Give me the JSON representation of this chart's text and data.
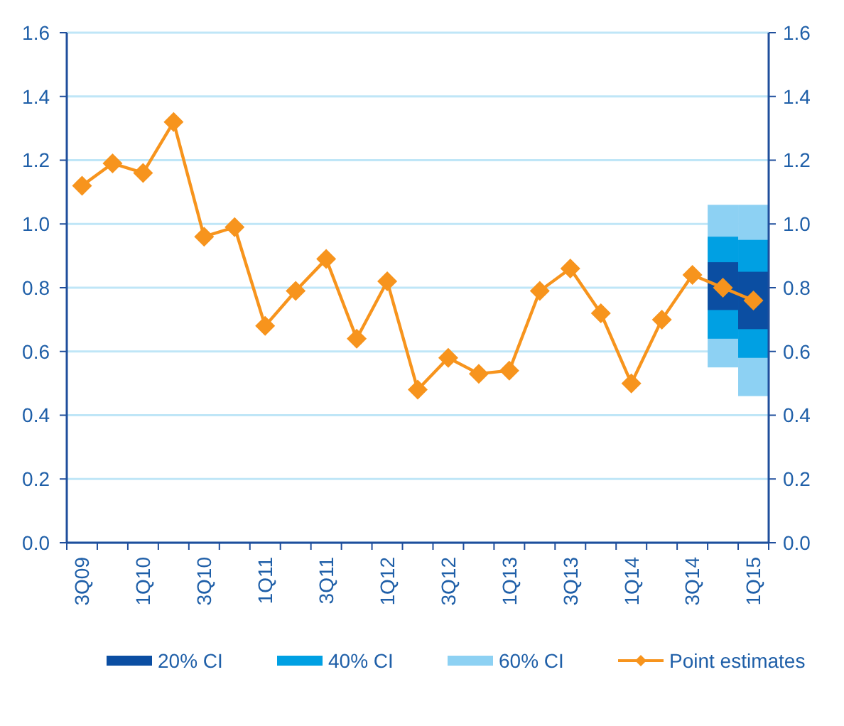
{
  "chart_data": {
    "type": "line",
    "categories": [
      "3Q09",
      null,
      "1Q10",
      null,
      "3Q10",
      null,
      "1Q11",
      null,
      "3Q11",
      null,
      "1Q12",
      null,
      "3Q12",
      null,
      "1Q13",
      null,
      "3Q13",
      null,
      "1Q14",
      null,
      "3Q14",
      null,
      "1Q15"
    ],
    "series": [
      {
        "name": "20% CI",
        "type": "bar",
        "color": "#0b4ea2",
        "base": [
          null,
          null,
          null,
          null,
          null,
          null,
          null,
          null,
          null,
          null,
          null,
          null,
          null,
          null,
          null,
          null,
          null,
          null,
          null,
          null,
          null,
          0.73,
          0.67
        ],
        "values": [
          null,
          null,
          null,
          null,
          null,
          null,
          null,
          null,
          null,
          null,
          null,
          null,
          null,
          null,
          null,
          null,
          null,
          null,
          null,
          null,
          null,
          0.15,
          0.18
        ]
      },
      {
        "name": "40% CI",
        "type": "bar",
        "color": "#00a0e3",
        "base": [
          null,
          null,
          null,
          null,
          null,
          null,
          null,
          null,
          null,
          null,
          null,
          null,
          null,
          null,
          null,
          null,
          null,
          null,
          null,
          null,
          null,
          0.64,
          0.58
        ],
        "values": [
          null,
          null,
          null,
          null,
          null,
          null,
          null,
          null,
          null,
          null,
          null,
          null,
          null,
          null,
          null,
          null,
          null,
          null,
          null,
          null,
          null,
          0.32,
          0.37
        ]
      },
      {
        "name": "60% CI",
        "type": "bar",
        "color": "#8dd1f3",
        "base": [
          null,
          null,
          null,
          null,
          null,
          null,
          null,
          null,
          null,
          null,
          null,
          null,
          null,
          null,
          null,
          null,
          null,
          null,
          null,
          null,
          null,
          0.55,
          0.46
        ],
        "values": [
          null,
          null,
          null,
          null,
          null,
          null,
          null,
          null,
          null,
          null,
          null,
          null,
          null,
          null,
          null,
          null,
          null,
          null,
          null,
          null,
          null,
          0.51,
          0.6
        ]
      },
      {
        "name": "Point estimates",
        "color": "#f7941d",
        "marker": "diamond",
        "values": [
          1.12,
          1.19,
          1.16,
          1.32,
          0.96,
          0.99,
          0.68,
          0.79,
          0.89,
          0.64,
          0.82,
          0.48,
          0.58,
          0.53,
          0.54,
          0.79,
          0.86,
          0.72,
          0.5,
          0.7,
          0.84,
          0.8,
          0.76
        ]
      }
    ],
    "ylim": [
      0,
      1.6
    ],
    "yticks": [
      {
        "value": 0,
        "label": "0.0"
      },
      {
        "value": 0.2,
        "label": "0.2"
      },
      {
        "value": 0.4,
        "label": "0.4"
      },
      {
        "value": 0.6,
        "label": "0.6"
      },
      {
        "value": 0.8,
        "label": "0.8"
      },
      {
        "value": 1,
        "label": "1.0"
      },
      {
        "value": 1.2,
        "label": "1.2"
      },
      {
        "value": 1.4,
        "label": "1.4"
      },
      {
        "value": 1.6,
        "label": "1.6"
      }
    ],
    "y2lim": [
      0,
      1.6
    ],
    "y2ticks": [
      {
        "value": 0,
        "label": "0.0"
      },
      {
        "value": 0.2,
        "label": "0.2"
      },
      {
        "value": 0.4,
        "label": "0.4"
      },
      {
        "value": 0.6,
        "label": "0.6"
      },
      {
        "value": 0.8,
        "label": "0.8"
      },
      {
        "value": 1,
        "label": "1.0"
      },
      {
        "value": 1.2,
        "label": "1.2"
      },
      {
        "value": 1.4,
        "label": "1.4"
      },
      {
        "value": 1.6,
        "label": "1.6"
      }
    ],
    "grid": "y",
    "legend": "bottom",
    "line_style": "solid"
  }
}
